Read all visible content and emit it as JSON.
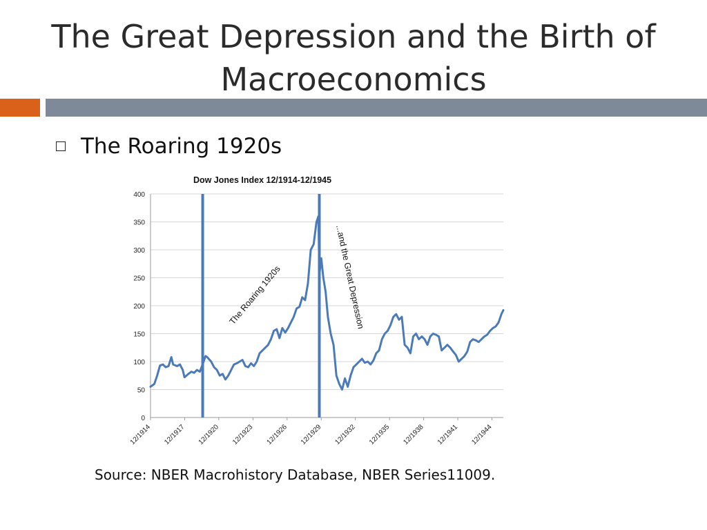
{
  "slide": {
    "title": "The Great Depression and the Birth of Macroeconomics",
    "bullet": "The Roaring 1920s",
    "source": "Source: NBER Macrohistory Database, NBER Series11009."
  },
  "colors": {
    "accent": "#d9611a",
    "rule": "#7f8a99",
    "series": "#4a7ab7",
    "grid": "#d6d6d6"
  },
  "chart_data": {
    "type": "line",
    "title": "Dow Jones Index 12/1914-12/1945",
    "xlabel": "",
    "ylabel": "",
    "x_range": [
      1914.917,
      1945.917
    ],
    "ylim": [
      0,
      400
    ],
    "y_ticks": [
      0,
      50,
      100,
      150,
      200,
      250,
      300,
      350,
      400
    ],
    "x_tick_labels": [
      "12/1914",
      "12/1917",
      "12/1920",
      "12/1923",
      "12/1926",
      "12/1929",
      "12/1932",
      "12/1935",
      "12/1938",
      "12/1941",
      "12/1944"
    ],
    "grid": true,
    "legend": "none",
    "series": [
      {
        "x": [
          1914.917,
          1915.25,
          1915.5,
          1915.75,
          1916.0,
          1916.25,
          1916.5,
          1916.75,
          1916.9,
          1917.25,
          1917.5,
          1917.75,
          1917.9,
          1918.25,
          1918.5,
          1918.75,
          1919.0,
          1919.25,
          1919.5,
          1919.75,
          1919.9,
          1920.25,
          1920.5,
          1920.75,
          1921.0,
          1921.25,
          1921.5,
          1921.75,
          1922.0,
          1922.25,
          1922.5,
          1922.75,
          1923.0,
          1923.25,
          1923.5,
          1923.75,
          1924.0,
          1924.25,
          1924.5,
          1924.75,
          1925.0,
          1925.25,
          1925.5,
          1925.75,
          1926.0,
          1926.25,
          1926.5,
          1926.75,
          1927.0,
          1927.25,
          1927.5,
          1927.75,
          1928.0,
          1928.25,
          1928.5,
          1928.75,
          1929.0,
          1929.25,
          1929.5,
          1929.67,
          1929.75,
          1929.92,
          1930.1,
          1930.3,
          1930.5,
          1930.75,
          1931.0,
          1931.25,
          1931.5,
          1931.75,
          1932.0,
          1932.25,
          1932.5,
          1932.75,
          1933.0,
          1933.25,
          1933.5,
          1933.75,
          1934.0,
          1934.25,
          1934.5,
          1934.75,
          1935.0,
          1935.25,
          1935.5,
          1935.75,
          1936.0,
          1936.25,
          1936.5,
          1936.75,
          1937.0,
          1937.25,
          1937.5,
          1937.75,
          1938.0,
          1938.25,
          1938.5,
          1938.75,
          1939.0,
          1939.25,
          1939.5,
          1939.75,
          1940.0,
          1940.25,
          1940.5,
          1940.75,
          1941.0,
          1941.25,
          1941.5,
          1941.75,
          1942.0,
          1942.25,
          1942.5,
          1942.75,
          1943.0,
          1943.25,
          1943.5,
          1943.75,
          1944.0,
          1944.25,
          1944.5,
          1944.75,
          1945.0,
          1945.25,
          1945.5,
          1945.75,
          1945.917
        ],
        "values": [
          55,
          60,
          75,
          93,
          95,
          90,
          92,
          108,
          95,
          92,
          95,
          85,
          72,
          78,
          82,
          80,
          85,
          82,
          95,
          110,
          108,
          100,
          90,
          85,
          75,
          78,
          68,
          75,
          85,
          95,
          97,
          100,
          103,
          92,
          90,
          97,
          92,
          100,
          115,
          120,
          125,
          130,
          140,
          155,
          158,
          142,
          160,
          152,
          160,
          170,
          180,
          195,
          198,
          215,
          210,
          240,
          300,
          310,
          350,
          360,
          255,
          285,
          250,
          225,
          180,
          150,
          130,
          75,
          60,
          50,
          70,
          55,
          75,
          90,
          95,
          100,
          105,
          98,
          100,
          95,
          102,
          115,
          120,
          140,
          150,
          155,
          165,
          180,
          185,
          175,
          180,
          130,
          125,
          115,
          145,
          150,
          140,
          145,
          140,
          130,
          145,
          150,
          148,
          145,
          120,
          125,
          130,
          125,
          118,
          112,
          100,
          105,
          110,
          118,
          135,
          140,
          138,
          135,
          140,
          145,
          148,
          155,
          160,
          163,
          170,
          185,
          192
        ]
      }
    ],
    "markers": [
      {
        "x": 1919.5,
        "label": ""
      },
      {
        "x": 1929.75,
        "label": ""
      }
    ],
    "annotations": [
      {
        "text": "The Roaring 1920s"
      },
      {
        "text": "...and the Great Depression"
      }
    ]
  }
}
